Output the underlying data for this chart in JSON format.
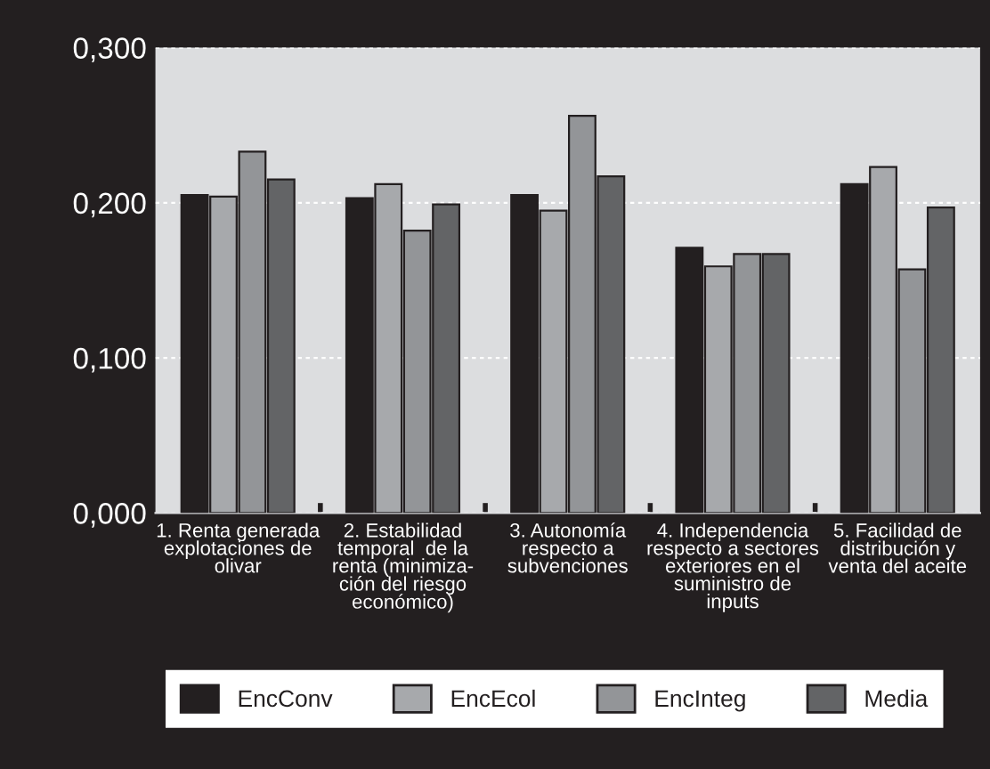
{
  "chart_data": {
    "type": "bar",
    "categories": [
      "1. Renta generada\nexplotaciones de\nolivar",
      "2. Estabilidad\ntemporal  de la\nrenta (minimiza-\nción del riesgo\neconómico)",
      "3. Autonomía\nrespecto a\nsubvenciones",
      "4. Independencia\nrespecto a sectores\nexteriores en el\nsuministro de\ninputs",
      "5. Facilidad de\ndistribución y\nventa del aceite"
    ],
    "series": [
      {
        "name": "EncConv",
        "color": "#231f20",
        "values": [
          0.205,
          0.203,
          0.205,
          0.171,
          0.212
        ]
      },
      {
        "name": "EncEcol",
        "color": "#a7a9ac",
        "values": [
          0.204,
          0.212,
          0.195,
          0.159,
          0.223
        ]
      },
      {
        "name": "EncInteg",
        "color": "#939598",
        "values": [
          0.233,
          0.182,
          0.256,
          0.167,
          0.157
        ]
      },
      {
        "name": "Media",
        "color": "#636466",
        "values": [
          0.215,
          0.199,
          0.217,
          0.167,
          0.197
        ]
      }
    ],
    "ylim": [
      0,
      0.3
    ],
    "yticks": [
      {
        "value": 0,
        "label": "0,000"
      },
      {
        "value": 0.1,
        "label": "0,100"
      },
      {
        "value": 0.2,
        "label": "0,200"
      },
      {
        "value": 0.3,
        "label": "0,300"
      }
    ],
    "grid": "y",
    "legend": "bottom"
  }
}
